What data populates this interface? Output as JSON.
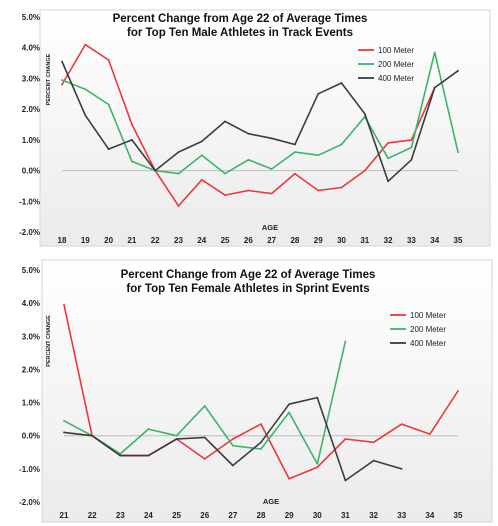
{
  "chart_data": [
    {
      "type": "line",
      "title": [
        "Percent Change from Age 22 of Average Times",
        "for Top Ten Male Athletes in Track Events"
      ],
      "xlabel": "AGE",
      "ylabel": "PERCENT CHANGE",
      "ylim": [
        -2.0,
        5.0
      ],
      "yticks": [
        "5.0%",
        "4.0%",
        "3.0%",
        "2.0%",
        "1.0%",
        "0.0%",
        "-1.0%",
        "-2.0%"
      ],
      "ytick_values": [
        5,
        4,
        3,
        2,
        1,
        0,
        -1,
        -2
      ],
      "x": [
        18,
        19,
        20,
        21,
        22,
        23,
        24,
        25,
        26,
        27,
        28,
        29,
        30,
        31,
        32,
        33,
        34,
        35
      ],
      "legend_position": "top-right",
      "grid": false,
      "series": [
        {
          "name": "100 Meter",
          "color": "#e8393c",
          "values": [
            2.8,
            4.1,
            3.6,
            1.5,
            0.0,
            -1.15,
            -0.3,
            -0.8,
            -0.65,
            -0.75,
            -0.1,
            -0.65,
            -0.55,
            0.0,
            0.9,
            1.0,
            2.7,
            null
          ]
        },
        {
          "name": "200 Meter",
          "color": "#3cb56a",
          "values": [
            2.95,
            2.65,
            2.15,
            0.3,
            0.0,
            -0.1,
            0.5,
            -0.1,
            0.35,
            0.05,
            0.6,
            0.5,
            0.85,
            1.75,
            0.4,
            0.75,
            3.85,
            0.6
          ]
        },
        {
          "name": "400 Meter",
          "color": "#3c3c3c",
          "values": [
            3.55,
            1.8,
            0.7,
            1.0,
            0.0,
            0.6,
            0.95,
            1.6,
            1.2,
            1.05,
            0.85,
            2.5,
            2.85,
            1.85,
            -0.35,
            0.35,
            2.7,
            3.25
          ]
        }
      ]
    },
    {
      "type": "line",
      "title": [
        "Percent Change from Age 22 of Average Times",
        "for Top Ten Female Athletes in Sprint Events"
      ],
      "xlabel": "AGE",
      "ylabel": "PERCENT CHANGE",
      "ylim": [
        -2.0,
        5.0
      ],
      "yticks": [
        "5.0%",
        "4.0%",
        "3.0%",
        "2.0%",
        "1.0%",
        "0.0%",
        "-1.0%",
        "-2.0%"
      ],
      "ytick_values": [
        5,
        4,
        3,
        2,
        1,
        0,
        -1,
        -2
      ],
      "x": [
        21,
        22,
        23,
        24,
        25,
        26,
        27,
        28,
        29,
        30,
        31,
        32,
        33,
        34,
        35
      ],
      "legend_position": "top-right",
      "grid": false,
      "series": [
        {
          "name": "100 Meter",
          "color": "#e8393c",
          "values": [
            3.95,
            0.0,
            -0.6,
            -0.6,
            -0.1,
            -0.7,
            -0.1,
            0.35,
            -1.3,
            -0.95,
            -0.1,
            -0.2,
            0.35,
            0.05,
            1.35
          ]
        },
        {
          "name": "200 Meter",
          "color": "#3cb56a",
          "values": [
            0.45,
            0.0,
            -0.55,
            0.2,
            0.0,
            0.9,
            -0.3,
            -0.4,
            0.7,
            -0.85,
            2.85,
            null,
            null,
            null,
            null
          ]
        },
        {
          "name": "400 Meter",
          "color": "#3c3c3c",
          "values": [
            0.1,
            0.0,
            -0.6,
            -0.6,
            -0.1,
            -0.05,
            -0.9,
            -0.2,
            0.95,
            1.15,
            -1.35,
            -0.75,
            -1.0,
            null,
            null
          ]
        }
      ]
    }
  ]
}
